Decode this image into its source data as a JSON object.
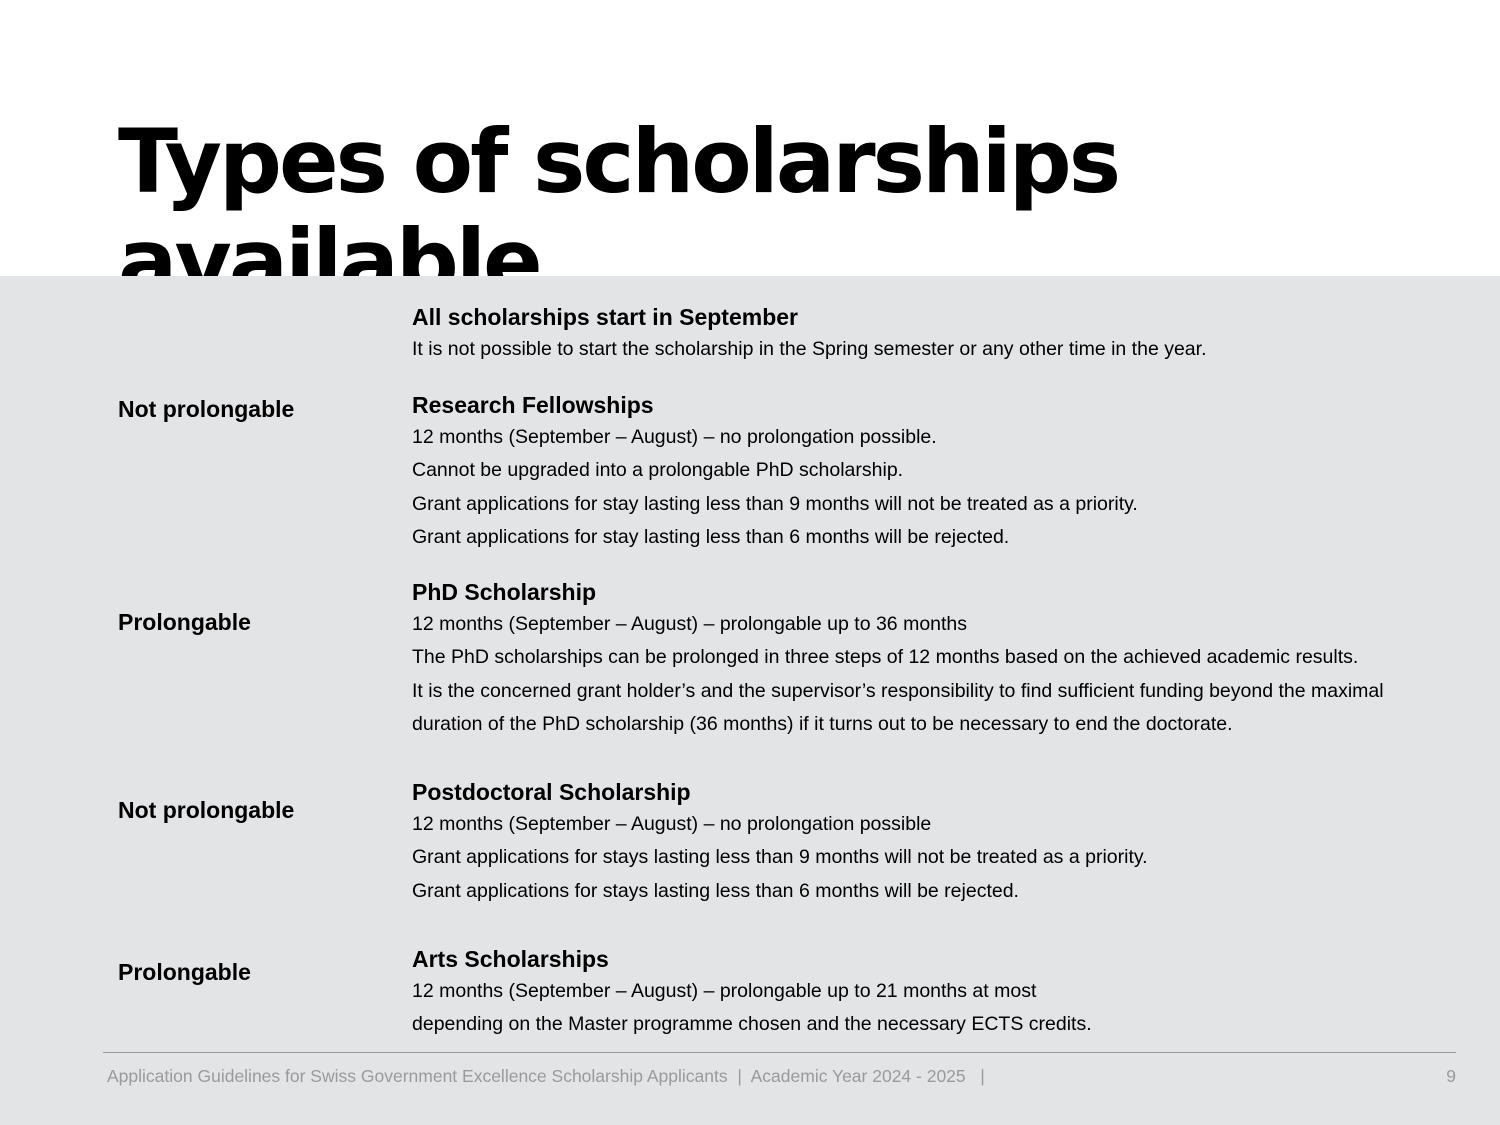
{
  "title": "Types of scholarships available",
  "sections": [
    {
      "label": "",
      "heading": "All scholarships start in September",
      "lines": [
        "It is not possible to start the scholarship in the Spring semester or any other time in the year."
      ]
    },
    {
      "label": "Not prolongable",
      "heading": "Research Fellowships",
      "lines": [
        "12 months (September – August) – no prolongation possible.",
        "Cannot be upgraded into a prolongable PhD scholarship.",
        "Grant applications for stay lasting less than 9 months will not be treated as a priority.",
        "Grant applications for stay lasting less than 6 months will be rejected."
      ]
    },
    {
      "label": "Prolongable",
      "heading": "PhD Scholarship",
      "lines": [
        "12 months (September – August) – prolongable up to 36 months",
        "The PhD scholarships can be prolonged in three steps of 12 months based on the achieved academic results.",
        "It is the concerned grant holder’s and the supervisor’s responsibility to find sufficient funding beyond the maximal",
        "duration of the PhD scholarship (36 months) if it turns out to be necessary to end the doctorate."
      ]
    },
    {
      "label": "Not prolongable",
      "heading": "Postdoctoral Scholarship",
      "lines": [
        "12 months (September – August) – no prolongation possible",
        "Grant applications for stays lasting less than 9 months will not be treated as a priority.",
        "Grant applications for stays lasting less than 6 months will be rejected."
      ]
    },
    {
      "label": "Prolongable",
      "heading": "Arts Scholarships",
      "lines": [
        "12 months (September – August) – prolongable up to 21 months at most",
        "depending on the Master programme chosen and the necessary ECTS credits."
      ]
    }
  ],
  "footer": {
    "text": "Application Guidelines for Swiss Government Excellence Scholarship Applicants  |  Academic Year 2024 - 2025   |",
    "page": "9"
  }
}
